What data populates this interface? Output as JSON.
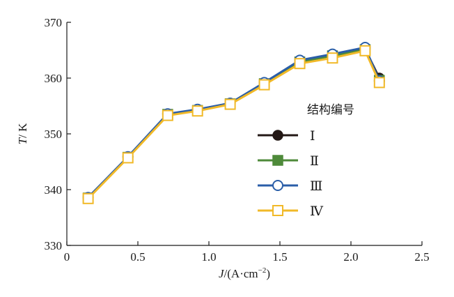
{
  "chart_data": {
    "type": "line",
    "x_axis": {
      "label_var": "J",
      "label_unit": "/(A·cm",
      "label_sup": "−2",
      "label_close": ")",
      "min": 0,
      "max": 2.5,
      "ticks": [
        0,
        0.5,
        1.0,
        1.5,
        2.0,
        2.5
      ],
      "tick_labels": [
        "0",
        "0.5",
        "1.0",
        "1.5",
        "2.0",
        "2.5"
      ]
    },
    "y_axis": {
      "label_var": "T",
      "label_unit": "/ K",
      "min": 330,
      "max": 370,
      "ticks": [
        330,
        340,
        350,
        360,
        370
      ],
      "tick_labels": [
        "330",
        "340",
        "350",
        "360",
        "370"
      ]
    },
    "legend": {
      "title": "结构编号",
      "placement": "right-middle"
    },
    "series": [
      {
        "name": "Ⅰ",
        "color": "#231815",
        "marker": "circle-filled",
        "x": [
          0.15,
          0.43,
          0.71,
          0.92,
          1.15,
          1.39,
          1.64,
          1.87,
          2.1,
          2.2
        ],
        "y": [
          338.6,
          345.8,
          353.5,
          354.3,
          355.5,
          359.1,
          363.0,
          364.1,
          365.2,
          360.0
        ]
      },
      {
        "name": "Ⅱ",
        "color": "#4e8a3a",
        "marker": "square-filled",
        "x": [
          0.15,
          0.43,
          0.71,
          0.92,
          1.15,
          1.39,
          1.64,
          1.87,
          2.1,
          2.2
        ],
        "y": [
          338.5,
          345.8,
          353.5,
          354.2,
          355.4,
          359.0,
          362.9,
          364.0,
          365.1,
          359.6
        ]
      },
      {
        "name": "Ⅲ",
        "color": "#2a5ea8",
        "marker": "circle-open",
        "x": [
          0.15,
          0.43,
          0.71,
          0.92,
          1.15,
          1.39,
          1.64,
          1.87,
          2.1,
          2.2
        ],
        "y": [
          338.6,
          345.9,
          353.6,
          354.4,
          355.5,
          359.2,
          363.2,
          364.3,
          365.5,
          359.5
        ]
      },
      {
        "name": "Ⅳ",
        "color": "#f1b928",
        "marker": "square-open",
        "x": [
          0.15,
          0.43,
          0.71,
          0.92,
          1.15,
          1.39,
          1.64,
          1.87,
          2.1,
          2.2
        ],
        "y": [
          338.4,
          345.7,
          353.3,
          354.1,
          355.3,
          358.8,
          362.6,
          363.6,
          364.9,
          359.2
        ]
      }
    ]
  }
}
